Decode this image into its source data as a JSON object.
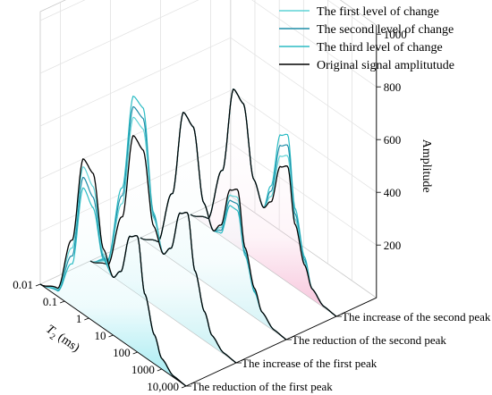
{
  "chart_data": {
    "type": "line",
    "title": "",
    "xlabel": "T2 (ms)",
    "ylabel": "Amplitude",
    "x_scale": "log",
    "x_range": [
      0.01,
      10000
    ],
    "x_ticks": [
      "0.01",
      "0.1",
      "1",
      "10",
      "100",
      "1000",
      "10,000"
    ],
    "x_label_main": "T",
    "x_label_sub": "2",
    "x_label_unit": " (ms)",
    "y_range": [
      0,
      1000
    ],
    "y_ticks": [
      "200",
      "400",
      "600",
      "800",
      "1000"
    ],
    "panels": [
      "The reduction of the first peak",
      "The increase of the first peak",
      "The reduction of the second peak",
      "The increase of the second peak"
    ],
    "legend": {
      "position": "top-right",
      "entries": [
        {
          "label": "The first level of change",
          "color": "#5fd3d6"
        },
        {
          "label": "The second level of change",
          "color": "#1f8ea8"
        },
        {
          "label": "The third level of change",
          "color": "#2bbcc4"
        },
        {
          "label": "Original signal amplitutude",
          "color": "#000000"
        }
      ]
    },
    "series_by_panel": [
      {
        "panel": "The reduction of the first peak",
        "series": [
          {
            "name": "Original signal amplitutude",
            "x": [
              0.01,
              0.05,
              0.2,
              0.6,
              1.5,
              4,
              10,
              20,
              50,
              100,
              200,
              500,
              1000,
              3000,
              10000
            ],
            "y": [
              0,
              30,
              250,
              590,
              560,
              300,
              220,
              260,
              420,
              440,
              240,
              110,
              40,
              5,
              0
            ]
          },
          {
            "name": "The first level of change",
            "x": [
              0.01,
              0.05,
              0.2,
              0.6,
              1.5,
              4,
              10,
              20,
              50,
              100,
              200,
              500,
              1000,
              3000,
              10000
            ],
            "y": [
              0,
              25,
              220,
              560,
              510,
              280,
              220,
              260,
              420,
              440,
              240,
              110,
              40,
              5,
              0
            ]
          },
          {
            "name": "The second level of change",
            "x": [
              0.01,
              0.05,
              0.2,
              0.6,
              1.5,
              4,
              10,
              20,
              50,
              100,
              200,
              500,
              1000,
              3000,
              10000
            ],
            "y": [
              0,
              22,
              190,
              520,
              470,
              270,
              220,
              260,
              420,
              440,
              240,
              110,
              40,
              5,
              0
            ]
          },
          {
            "name": "The third level of change",
            "x": [
              0.01,
              0.05,
              0.2,
              0.6,
              1.5,
              4,
              10,
              20,
              50,
              100,
              200,
              500,
              1000,
              3000,
              10000
            ],
            "y": [
              0,
              20,
              160,
              480,
              430,
              260,
              220,
              260,
              420,
              440,
              240,
              110,
              40,
              5,
              0
            ]
          }
        ]
      },
      {
        "panel": "The increase of the first peak",
        "series": [
          {
            "name": "Original signal amplitutude",
            "x": [
              0.01,
              0.05,
              0.2,
              0.6,
              1.5,
              4,
              10,
              20,
              50,
              100,
              200,
              500,
              1000,
              3000,
              10000
            ],
            "y": [
              0,
              30,
              250,
              590,
              560,
              300,
              220,
              260,
              420,
              440,
              240,
              110,
              40,
              5,
              0
            ]
          },
          {
            "name": "The first level of change",
            "x": [
              0.01,
              0.05,
              0.2,
              0.6,
              1.5,
              4,
              10,
              20,
              50,
              100,
              200,
              500,
              1000,
              3000,
              10000
            ],
            "y": [
              0,
              40,
              300,
              660,
              640,
              330,
              220,
              260,
              420,
              440,
              240,
              110,
              40,
              5,
              0
            ]
          },
          {
            "name": "The second level of change",
            "x": [
              0.01,
              0.05,
              0.2,
              0.6,
              1.5,
              4,
              10,
              20,
              50,
              100,
              200,
              500,
              1000,
              3000,
              10000
            ],
            "y": [
              0,
              45,
              330,
              700,
              680,
              340,
              220,
              260,
              420,
              440,
              240,
              110,
              40,
              5,
              0
            ]
          },
          {
            "name": "The third level of change",
            "x": [
              0.01,
              0.05,
              0.2,
              0.6,
              1.5,
              4,
              10,
              20,
              50,
              100,
              200,
              500,
              1000,
              3000,
              10000
            ],
            "y": [
              0,
              50,
              360,
              740,
              720,
              350,
              220,
              260,
              420,
              440,
              240,
              110,
              40,
              5,
              0
            ]
          }
        ]
      },
      {
        "panel": "The reduction of the second peak",
        "series": [
          {
            "name": "Original signal amplitutude",
            "x": [
              0.01,
              0.05,
              0.2,
              0.6,
              1.5,
              4,
              10,
              20,
              50,
              100,
              200,
              500,
              1000,
              3000,
              10000
            ],
            "y": [
              0,
              30,
              250,
              590,
              560,
              300,
              220,
              260,
              420,
              440,
              240,
              110,
              40,
              5,
              0
            ]
          },
          {
            "name": "The first level of change",
            "x": [
              0.01,
              0.05,
              0.2,
              0.6,
              1.5,
              4,
              10,
              20,
              50,
              100,
              200,
              500,
              1000,
              3000,
              10000
            ],
            "y": [
              0,
              30,
              250,
              590,
              560,
              300,
              220,
              250,
              400,
              410,
              230,
              105,
              40,
              5,
              0
            ]
          },
          {
            "name": "The second level of change",
            "x": [
              0.01,
              0.05,
              0.2,
              0.6,
              1.5,
              4,
              10,
              20,
              50,
              100,
              200,
              500,
              1000,
              3000,
              10000
            ],
            "y": [
              0,
              30,
              250,
              590,
              560,
              300,
              220,
              240,
              380,
              385,
              220,
              100,
              40,
              5,
              0
            ]
          },
          {
            "name": "The third level of change",
            "x": [
              0.01,
              0.05,
              0.2,
              0.6,
              1.5,
              4,
              10,
              20,
              50,
              100,
              200,
              500,
              1000,
              3000,
              10000
            ],
            "y": [
              0,
              30,
              250,
              590,
              560,
              300,
              220,
              230,
              360,
              360,
              210,
              95,
              40,
              5,
              0
            ]
          }
        ]
      },
      {
        "panel": "The increase of the second peak",
        "series": [
          {
            "name": "Original signal amplitutude",
            "x": [
              0.01,
              0.05,
              0.2,
              0.6,
              1.5,
              4,
              10,
              20,
              50,
              100,
              200,
              500,
              1000,
              3000,
              10000
            ],
            "y": [
              0,
              30,
              250,
              590,
              560,
              300,
              220,
              260,
              420,
              440,
              240,
              110,
              40,
              5,
              0
            ]
          },
          {
            "name": "The first level of change",
            "x": [
              0.01,
              0.05,
              0.2,
              0.6,
              1.5,
              4,
              10,
              20,
              50,
              100,
              200,
              500,
              1000,
              3000,
              10000
            ],
            "y": [
              0,
              30,
              250,
              590,
              560,
              300,
              220,
              280,
              460,
              480,
              260,
              120,
              40,
              5,
              0
            ]
          },
          {
            "name": "The second level of change",
            "x": [
              0.01,
              0.05,
              0.2,
              0.6,
              1.5,
              4,
              10,
              20,
              50,
              100,
              200,
              500,
              1000,
              3000,
              10000
            ],
            "y": [
              0,
              30,
              250,
              590,
              560,
              300,
              220,
              300,
              500,
              520,
              280,
              130,
              40,
              5,
              0
            ]
          },
          {
            "name": "The third level of change",
            "x": [
              0.01,
              0.05,
              0.2,
              0.6,
              1.5,
              4,
              10,
              20,
              50,
              100,
              200,
              500,
              1000,
              3000,
              10000
            ],
            "y": [
              0,
              30,
              250,
              590,
              560,
              300,
              220,
              320,
              540,
              560,
              300,
              140,
              40,
              5,
              0
            ]
          }
        ]
      }
    ],
    "grid": true,
    "fill_colors": [
      "#8fe6ee",
      "#bdeef2",
      "#c9f0f4",
      "#f5b7d3"
    ]
  }
}
